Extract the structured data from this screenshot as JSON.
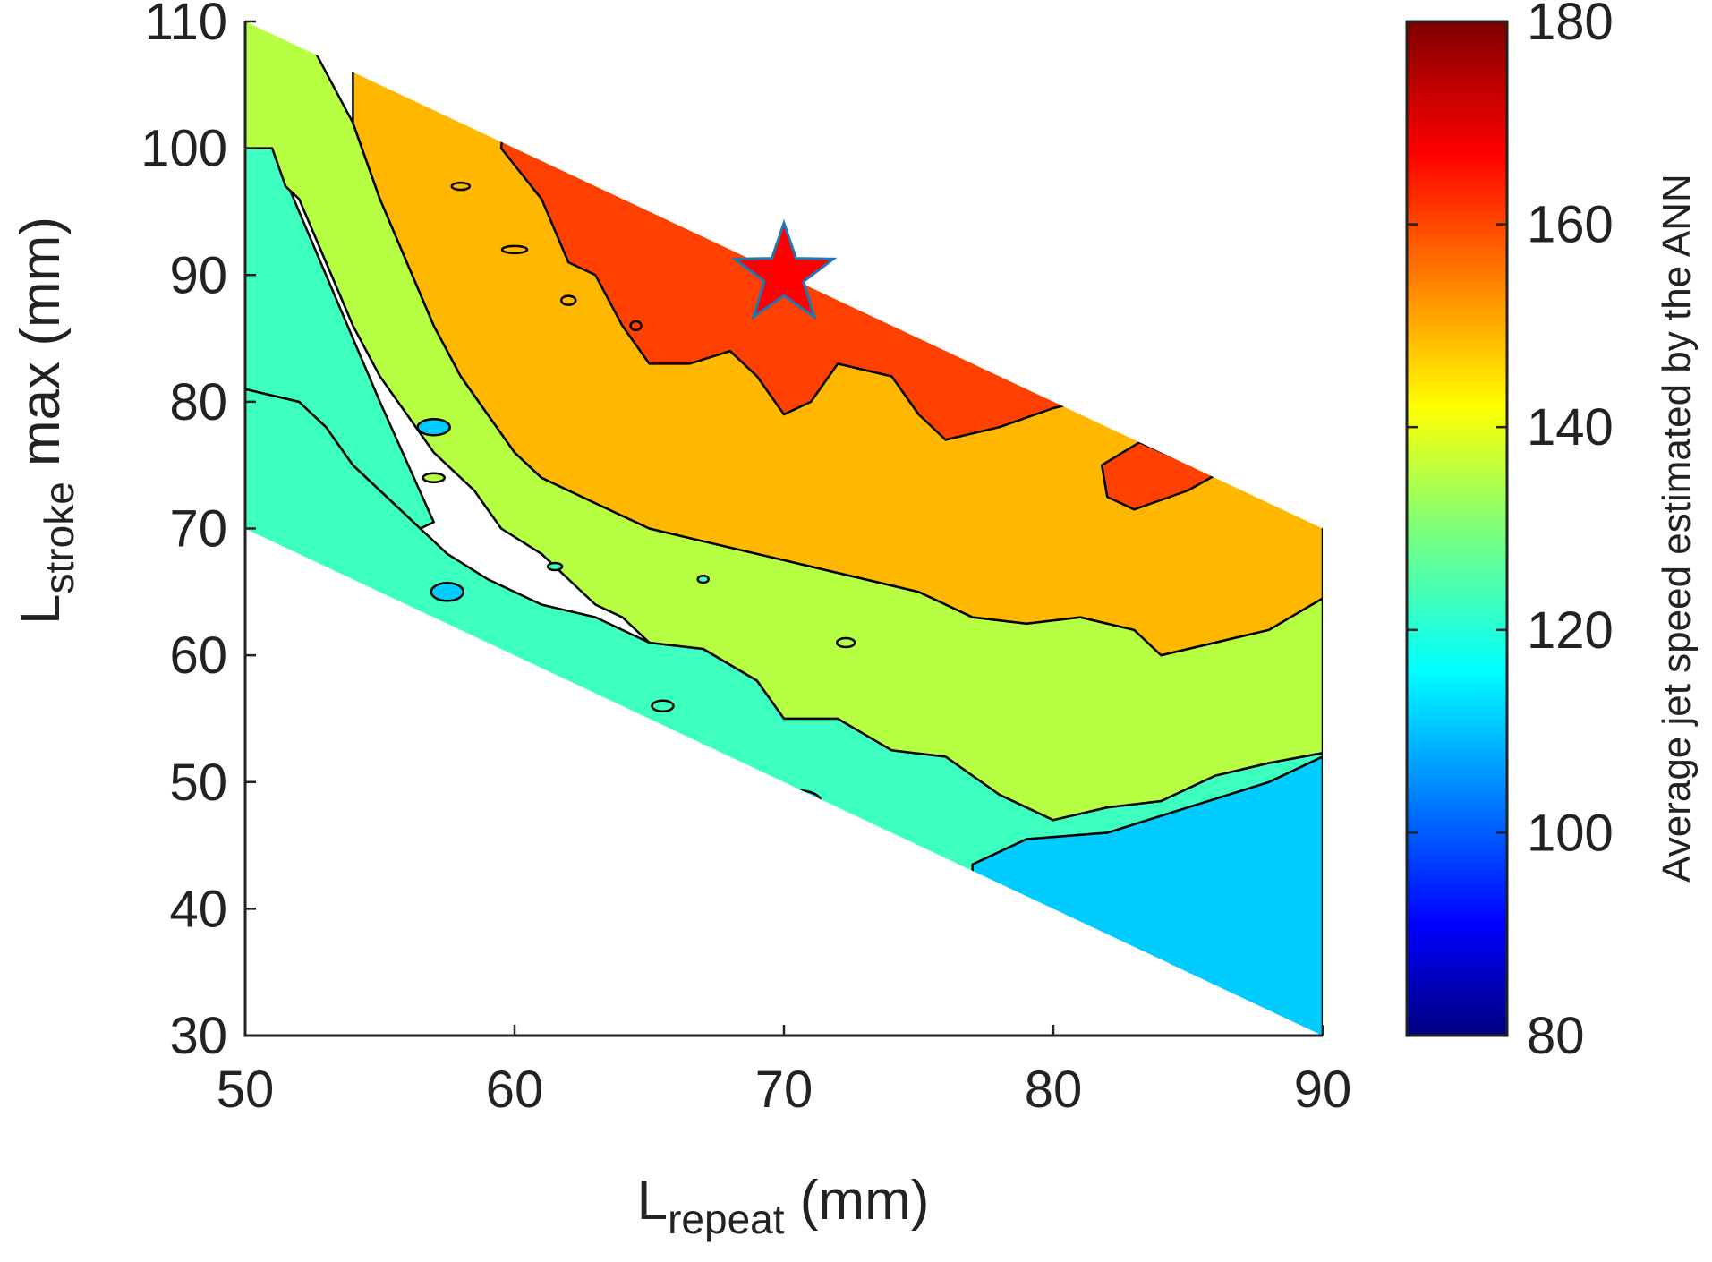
{
  "chart_data": {
    "type": "heatmap",
    "subtype": "filled contour plot",
    "title": "",
    "xlabel": {
      "main": "L",
      "sub": "repeat",
      "unit": " (mm)"
    },
    "ylabel": {
      "main": "L",
      "sub": "stroke",
      "rest": " max (mm)"
    },
    "xlim": [
      50,
      90
    ],
    "ylim": [
      30,
      110
    ],
    "xticks": [
      "50",
      "60",
      "70",
      "80",
      "90"
    ],
    "yticks": [
      "30",
      "40",
      "50",
      "60",
      "70",
      "80",
      "90",
      "100",
      "110"
    ],
    "grid": false,
    "domain": "parallelogram: upper edge from (50,110) to (90,70); lower edge from (50,70) to (90,30)",
    "colorbar": {
      "label": "Average jet speed estimated by the ANN",
      "range": [
        80,
        180
      ],
      "ticks": [
        "80",
        "100",
        "120",
        "140",
        "160",
        "180"
      ],
      "colormap": "jet"
    },
    "contour_levels": [
      {
        "level": 110,
        "color": "#0055ff"
      },
      {
        "level": 115,
        "color": "#00ccff"
      },
      {
        "level": 125,
        "color": "#3dffbf"
      },
      {
        "level": 135,
        "color": "#b6ff43"
      },
      {
        "level": 150,
        "color": "#ffb700"
      },
      {
        "level": 163,
        "color": "#ff4000"
      }
    ],
    "marker": {
      "shape": "star",
      "x": 70,
      "y": 90,
      "fill": "#ff0000",
      "edge": "#1f77b4"
    }
  }
}
